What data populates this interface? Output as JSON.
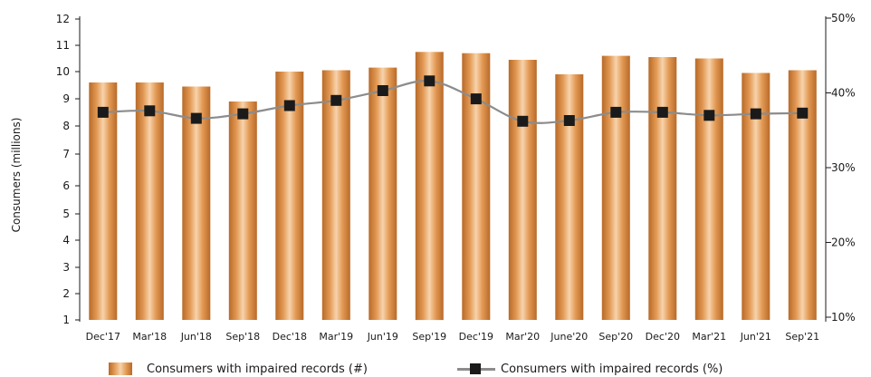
{
  "chart_data": {
    "type": "bar",
    "categories": [
      "Dec'17",
      "Mar'18",
      "Jun'18",
      "Sep'18",
      "Dec'18",
      "Mar'19",
      "Jun'19",
      "Sep'19",
      "Dec'19",
      "Mar'20",
      "June'20",
      "Sep'20",
      "Dec'20",
      "Mar'21",
      "Jun'21",
      "Sep'21"
    ],
    "series": [
      {
        "name": "Consumers with impaired records (#)",
        "type": "bar",
        "axis": "left",
        "values": [
          9.6,
          9.6,
          9.45,
          8.9,
          10.0,
          10.05,
          10.15,
          10.75,
          10.7,
          10.45,
          9.9,
          10.6,
          10.55,
          10.5,
          9.95,
          10.05
        ]
      },
      {
        "name": "Consumers with impaired records (%)",
        "type": "line",
        "axis": "right",
        "values": [
          37.4,
          37.6,
          36.6,
          37.2,
          38.3,
          39.0,
          40.3,
          41.6,
          39.2,
          36.2,
          36.3,
          37.4,
          37.4,
          37.0,
          37.2,
          37.3
        ]
      }
    ],
    "ylabel": "Consumers (millions)",
    "y_ticks": [
      "1",
      "2",
      "3",
      "4",
      "5",
      "6",
      "7",
      "8",
      "9",
      "10",
      "11",
      "12"
    ],
    "y2_ticks": [
      "10%",
      "20%",
      "30%",
      "40%",
      "50%"
    ],
    "grid": false,
    "legend_position": "bottom",
    "colors": {
      "bar_dark": "#b86a28",
      "bar_mid": "#e39a55",
      "bar_light": "#f7d3ac",
      "line": "#8c8c8c",
      "marker": "#1a1a1a",
      "axis": "#1a1a1a"
    }
  }
}
